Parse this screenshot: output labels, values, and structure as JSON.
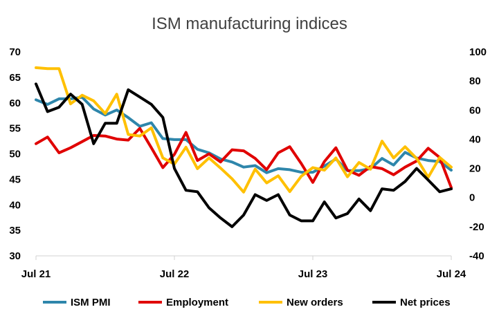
{
  "chart_data": {
    "type": "line",
    "title": "ISM manufacturing indices",
    "x_tick_labels": [
      "Jul 21",
      "Jul 22",
      "Jul 23",
      "Jul 24"
    ],
    "y_left": {
      "ticks": [
        30,
        35,
        40,
        45,
        50,
        55,
        60,
        65,
        70
      ],
      "ylim": [
        30,
        70
      ]
    },
    "y_right": {
      "ticks": [
        -40,
        -20,
        0,
        20,
        40,
        60,
        80,
        100
      ],
      "ylim": [
        -40,
        100
      ]
    },
    "grid": false,
    "legend_position": "bottom",
    "x": [
      "2021-07",
      "2021-08",
      "2021-09",
      "2021-10",
      "2021-11",
      "2021-12",
      "2022-01",
      "2022-02",
      "2022-03",
      "2022-04",
      "2022-05",
      "2022-06",
      "2022-07",
      "2022-08",
      "2022-09",
      "2022-10",
      "2022-11",
      "2022-12",
      "2023-01",
      "2023-02",
      "2023-03",
      "2023-04",
      "2023-05",
      "2023-06",
      "2023-07",
      "2023-08",
      "2023-09",
      "2023-10",
      "2023-11",
      "2023-12",
      "2024-01",
      "2024-02",
      "2024-03",
      "2024-04",
      "2024-05",
      "2024-06",
      "2024-07"
    ],
    "series": [
      {
        "name": "ISM PMI",
        "axis": "left",
        "color": "#2E86AB",
        "values": [
          60.6,
          59.7,
          60.8,
          60.8,
          61.1,
          58.8,
          57.6,
          58.6,
          57.1,
          55.4,
          56.1,
          53.0,
          52.8,
          52.8,
          50.9,
          50.2,
          49.0,
          48.4,
          47.4,
          47.7,
          46.3,
          47.1,
          46.9,
          46.4,
          46.4,
          47.6,
          49.0,
          46.7,
          46.7,
          47.1,
          49.1,
          47.8,
          50.3,
          49.2,
          48.7,
          48.5,
          46.8
        ]
      },
      {
        "name": "Employment",
        "axis": "left",
        "color": "#E00000",
        "values": [
          52.0,
          53.3,
          50.2,
          51.2,
          52.4,
          53.6,
          53.5,
          52.9,
          52.7,
          55.0,
          51.2,
          47.3,
          49.9,
          54.2,
          48.7,
          50.0,
          48.4,
          50.8,
          50.6,
          49.1,
          46.9,
          50.2,
          51.4,
          48.1,
          44.4,
          48.5,
          51.2,
          46.8,
          45.8,
          47.5,
          47.1,
          45.9,
          47.4,
          48.6,
          51.1,
          49.3,
          43.4
        ]
      },
      {
        "name": "New orders",
        "axis": "left",
        "color": "#FFC000",
        "values": [
          66.9,
          66.7,
          66.7,
          59.8,
          61.5,
          60.4,
          57.9,
          61.7,
          53.8,
          53.5,
          55.1,
          49.2,
          48.0,
          51.3,
          47.1,
          49.2,
          47.2,
          45.1,
          42.5,
          47.0,
          44.3,
          45.7,
          42.6,
          45.6,
          47.3,
          46.8,
          49.2,
          45.5,
          48.3,
          47.0,
          52.5,
          49.2,
          51.4,
          49.1,
          45.4,
          49.3,
          47.4
        ]
      },
      {
        "name": "Net prices",
        "axis": "right",
        "color": "#000000",
        "values": [
          78,
          59,
          62,
          71,
          64,
          37,
          51,
          51,
          74,
          69,
          64,
          55,
          20,
          5,
          4,
          -7,
          -14,
          -20,
          -12,
          2,
          -2,
          2,
          -12,
          -16,
          -16,
          -3,
          -14,
          -11,
          -1,
          -9,
          6,
          5,
          11,
          20,
          12,
          4,
          6
        ]
      }
    ]
  }
}
